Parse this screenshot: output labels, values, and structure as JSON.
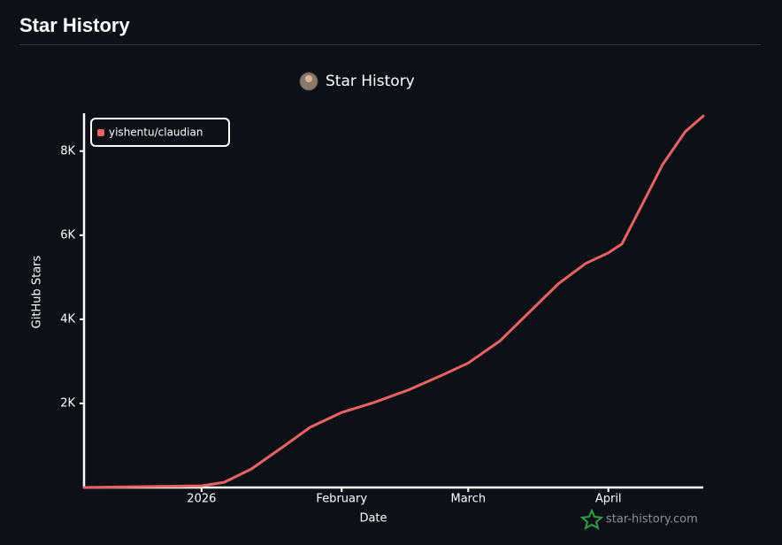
{
  "header": {
    "title": "Star History"
  },
  "chart_data": {
    "type": "line",
    "title": "Star History",
    "x_label": "Date",
    "y_label": "GitHub Stars",
    "x": [
      "2025-12-06",
      "2026-01-01",
      "2026-01-06",
      "2026-01-12",
      "2026-01-19",
      "2026-01-25",
      "2026-02-01",
      "2026-02-08",
      "2026-02-16",
      "2026-02-24",
      "2026-03-01",
      "2026-03-08",
      "2026-03-15",
      "2026-03-21",
      "2026-03-27",
      "2026-04-01",
      "2026-04-04",
      "2026-04-08",
      "2026-04-13",
      "2026-04-18",
      "2026-04-22"
    ],
    "series": [
      {
        "name": "yishentu/claudian",
        "color": "#e86464",
        "values": [
          0,
          40,
          125,
          440,
          965,
          1430,
          1785,
          2015,
          2330,
          2710,
          2960,
          3485,
          4220,
          4850,
          5330,
          5580,
          5790,
          6630,
          7680,
          8460,
          8835
        ]
      }
    ],
    "xlim": [
      "2025-12-06",
      "2026-04-22"
    ],
    "xticks": [
      {
        "value": "2026-01-01",
        "label": "2026"
      },
      {
        "value": "2026-02-01",
        "label": "February"
      },
      {
        "value": "2026-03-01",
        "label": "March"
      },
      {
        "value": "2026-04-01",
        "label": "April"
      }
    ],
    "ylim": [
      0,
      8900
    ],
    "yticks": [
      {
        "value": 2000,
        "label": "2K"
      },
      {
        "value": 4000,
        "label": "4K"
      },
      {
        "value": 6000,
        "label": "6K"
      },
      {
        "value": 8000,
        "label": "8K"
      }
    ],
    "legend": "upper left",
    "watermark": "star-history.com"
  }
}
